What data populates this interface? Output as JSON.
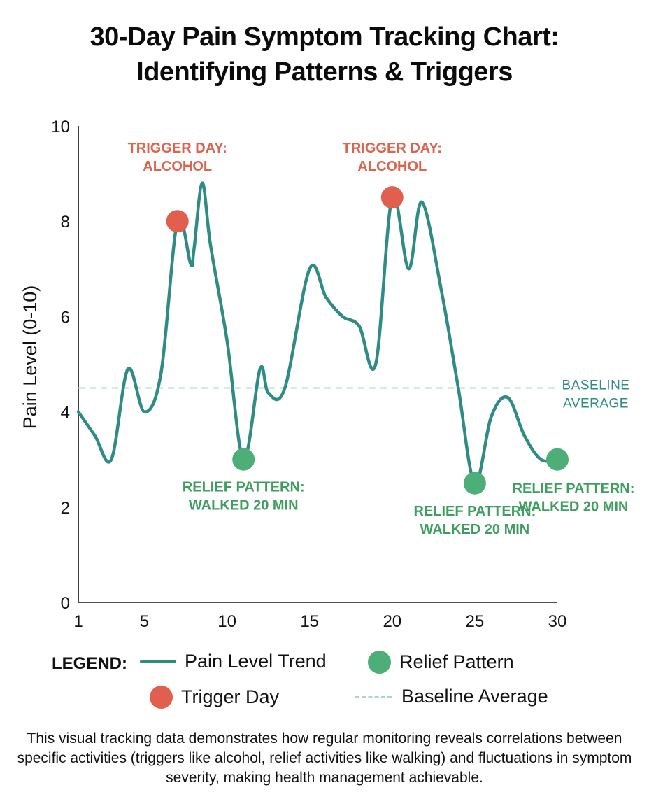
{
  "title_line1": "30-Day Pain Symptom Tracking Chart:",
  "title_line2": "Identifying Patterns & Triggers",
  "colors": {
    "line": "#2f8c85",
    "trigger": "#e05f4e",
    "relief": "#4dae78",
    "trigger_text": "#d9654f",
    "relief_text": "#3f9e5f",
    "baseline": "#a8d9c6",
    "baseline_text": "#2f8c85"
  },
  "chart_data": {
    "type": "line",
    "ylabel": "Pain Level (0-10)",
    "xlabel": "",
    "xlim": [
      1,
      30
    ],
    "ylim": [
      0,
      10
    ],
    "x_ticks": [
      1,
      5,
      10,
      15,
      20,
      25,
      30
    ],
    "y_ticks": [
      0,
      2,
      4,
      6,
      8,
      10
    ],
    "grid": false,
    "series": [
      {
        "name": "Pain Level Trend",
        "x": [
          1,
          2,
          3,
          4,
          5,
          6,
          7,
          7.8,
          8,
          8.5,
          9,
          10,
          11,
          12,
          12.5,
          13.5,
          15,
          16,
          17,
          18,
          19,
          20,
          21,
          21.8,
          23,
          24,
          25,
          26,
          27,
          28,
          29,
          30
        ],
        "y": [
          4,
          3.5,
          3,
          4.9,
          4,
          4.8,
          8,
          7.1,
          7.4,
          8.8,
          7.5,
          5.5,
          3,
          4.9,
          4.4,
          4.5,
          7,
          6.4,
          6,
          5.8,
          5,
          8.5,
          7,
          8.4,
          6.5,
          4.5,
          2.5,
          3.9,
          4.3,
          3.5,
          3,
          3
        ]
      }
    ],
    "baseline": {
      "label": "BASELINE AVERAGE",
      "label_lines": [
        "BASELINE",
        "AVERAGE"
      ],
      "y": 4.5
    },
    "markers": [
      {
        "kind": "trigger",
        "x": 7,
        "y": 8,
        "label_lines": [
          "TRIGGER DAY:",
          "ALCOHOL"
        ]
      },
      {
        "kind": "trigger",
        "x": 20,
        "y": 8.5,
        "label_lines": [
          "TRIGGER DAY:",
          "ALCOHOL"
        ]
      },
      {
        "kind": "relief",
        "x": 11,
        "y": 3,
        "label_lines": [
          "RELIEF PATTERN:",
          "WALKED 20 MIN"
        ]
      },
      {
        "kind": "relief",
        "x": 25,
        "y": 2.5,
        "label_lines": [
          "RELIEF PATTERN:",
          "WALKED 20 MIN"
        ]
      },
      {
        "kind": "relief",
        "x": 30,
        "y": 3,
        "label_lines": [
          "RELIEF PATTERN:",
          "WALKED 20 MIN"
        ]
      }
    ]
  },
  "legend": {
    "title": "LEGEND:",
    "items": [
      {
        "kind": "line",
        "label": "Pain Level Trend"
      },
      {
        "kind": "relief",
        "label": "Relief Pattern"
      },
      {
        "kind": "trigger",
        "label": "Trigger Day"
      },
      {
        "kind": "baseline",
        "label": "Baseline Average"
      }
    ]
  },
  "caption": "This visual tracking data demonstrates how regular monitoring reveals correlations between specific activities (triggers like alcohol, relief activities like walking) and fluctuations in symptom severity, making health management achievable."
}
